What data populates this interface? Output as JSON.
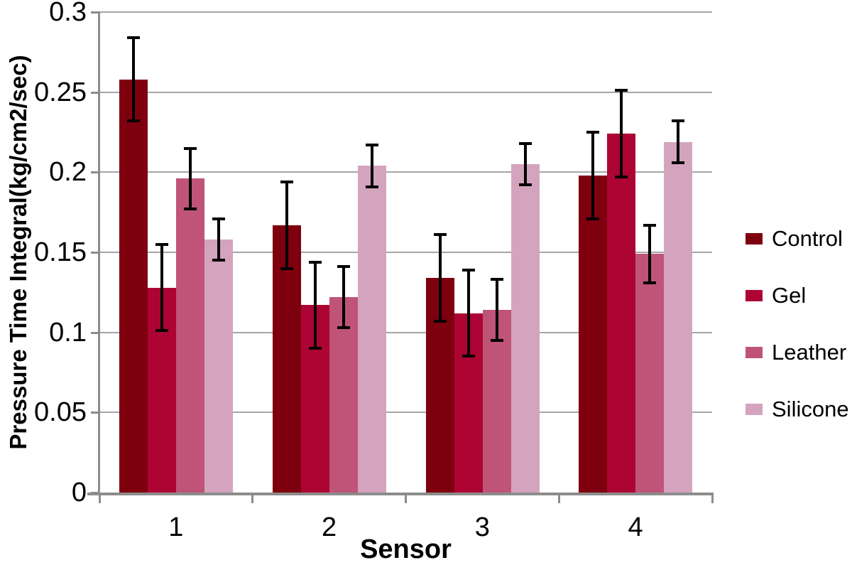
{
  "chart_data": {
    "type": "bar",
    "title": "",
    "xlabel": "Sensor",
    "ylabel": "Pressure Time Integral(kg/cm2/sec)",
    "categories": [
      "1",
      "2",
      "3",
      "4"
    ],
    "series": [
      {
        "name": "Control",
        "color": "#7E000F",
        "values": [
          0.258,
          0.167,
          0.134,
          0.198
        ],
        "errors": [
          0.026,
          0.027,
          0.027,
          0.027
        ]
      },
      {
        "name": "Gel",
        "color": "#AD0433",
        "values": [
          0.128,
          0.117,
          0.112,
          0.224
        ],
        "errors": [
          0.027,
          0.027,
          0.027,
          0.027
        ]
      },
      {
        "name": "Leather",
        "color": "#BF5478",
        "values": [
          0.196,
          0.122,
          0.114,
          0.149
        ],
        "errors": [
          0.019,
          0.019,
          0.019,
          0.018
        ]
      },
      {
        "name": "Silicone",
        "color": "#D4A4BE",
        "values": [
          0.158,
          0.204,
          0.205,
          0.219
        ],
        "errors": [
          0.013,
          0.013,
          0.013,
          0.013
        ]
      }
    ],
    "ylim": [
      0,
      0.3
    ],
    "ytick_step": 0.05,
    "ytick_labels": [
      "0",
      "0.05",
      "0.1",
      "0.15",
      "0.2",
      "0.25",
      "0.3"
    ],
    "grid": true,
    "legend_position": "right",
    "error_bars": true
  },
  "colors": {
    "axis": "#8C8C8C",
    "gridline": "#A6A6A6",
    "error_bar": "#000000",
    "background": "#FFFFFF",
    "text": "#000000"
  }
}
